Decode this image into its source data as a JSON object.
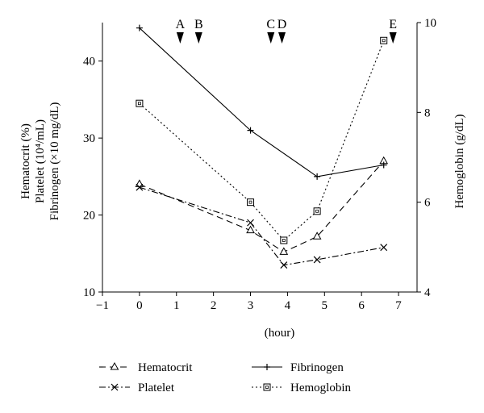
{
  "chart_data": {
    "type": "line",
    "x_axis": {
      "label": "(hour)",
      "range": [
        -1,
        7.5
      ],
      "ticks": [
        -1,
        0,
        1,
        2,
        3,
        4,
        5,
        6,
        7
      ],
      "tick_labels": [
        "−1",
        "0",
        "1",
        "2",
        "3",
        "4",
        "5",
        "6",
        "7"
      ]
    },
    "y_axis_left": {
      "label_lines": [
        "Hematocrit (%)",
        "Platelet (10⁴/mL)",
        "Fibrinogen (×10 mg/dL)"
      ],
      "range": [
        10,
        45
      ],
      "ticks": [
        10,
        20,
        30,
        40
      ],
      "tick_labels": [
        "10",
        "20",
        "30",
        "40"
      ]
    },
    "y_axis_right": {
      "label": "Hemoglobin (g/dL)",
      "range": [
        4,
        10
      ],
      "ticks": [
        4,
        6,
        8,
        10
      ],
      "tick_labels": [
        "4",
        "6",
        "8",
        "10"
      ]
    },
    "series": [
      {
        "name": "Hematocrit",
        "axis": "left",
        "marker": "triangle",
        "dash": "long-dash",
        "points": [
          [
            0,
            24
          ],
          [
            3,
            18
          ],
          [
            3.9,
            15.2
          ],
          [
            4.8,
            17.2
          ],
          [
            6.6,
            27
          ]
        ]
      },
      {
        "name": "Platelet",
        "axis": "left",
        "marker": "x",
        "dash": "dash-dot",
        "points": [
          [
            0,
            23.6
          ],
          [
            3,
            19
          ],
          [
            3.9,
            13.5
          ],
          [
            4.8,
            14.2
          ],
          [
            6.6,
            15.8
          ]
        ]
      },
      {
        "name": "Fibrinogen",
        "axis": "left",
        "marker": "plus",
        "dash": "solid",
        "points": [
          [
            0,
            44.3
          ],
          [
            3,
            31
          ],
          [
            4.8,
            25
          ],
          [
            6.6,
            26.5
          ]
        ]
      },
      {
        "name": "Hemoglobin",
        "axis": "right",
        "marker": "square",
        "dash": "dotted",
        "points": [
          [
            0,
            8.2
          ],
          [
            3,
            6
          ],
          [
            3.9,
            5.15
          ],
          [
            4.8,
            5.8
          ],
          [
            6.6,
            9.6
          ]
        ]
      }
    ],
    "event_markers": [
      {
        "label": "A",
        "x": 1.1
      },
      {
        "label": "B",
        "x": 1.6
      },
      {
        "label": "C",
        "x": 3.55
      },
      {
        "label": "D",
        "x": 3.85
      },
      {
        "label": "E",
        "x": 6.85
      }
    ],
    "legend_order": [
      "Hematocrit",
      "Fibrinogen",
      "Platelet",
      "Hemoglobin"
    ],
    "legend_position": "bottom"
  }
}
